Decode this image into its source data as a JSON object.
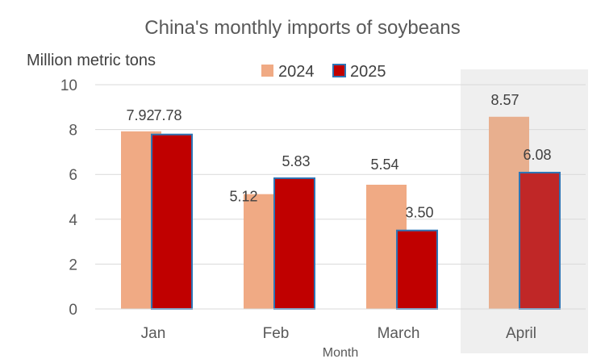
{
  "chart_data": {
    "type": "bar",
    "title": "China's monthly imports of soybeans",
    "ylabel": "Million metric tons",
    "xlabel": "Month",
    "categories": [
      "Jan",
      "Feb",
      "March",
      "April"
    ],
    "ylim": [
      0,
      10
    ],
    "yticks": [
      0,
      2,
      4,
      6,
      8,
      10
    ],
    "grid": true,
    "legend_position": "top",
    "highlighted_category": "April",
    "series": [
      {
        "name": "2024",
        "values": [
          7.92,
          5.12,
          5.54,
          8.57
        ],
        "labels": [
          "7.92",
          "5.12",
          "5.54",
          "8.57"
        ],
        "color": "#F0AA84",
        "highlight_color": "#E8AF8E"
      },
      {
        "name": "2025",
        "values": [
          7.78,
          5.83,
          3.5,
          6.08
        ],
        "labels": [
          "7.78",
          "5.83",
          "3.50",
          "6.08"
        ],
        "color": "#C00000",
        "highlight_color": "#C02727",
        "border_color": "#2E75B6"
      }
    ]
  }
}
